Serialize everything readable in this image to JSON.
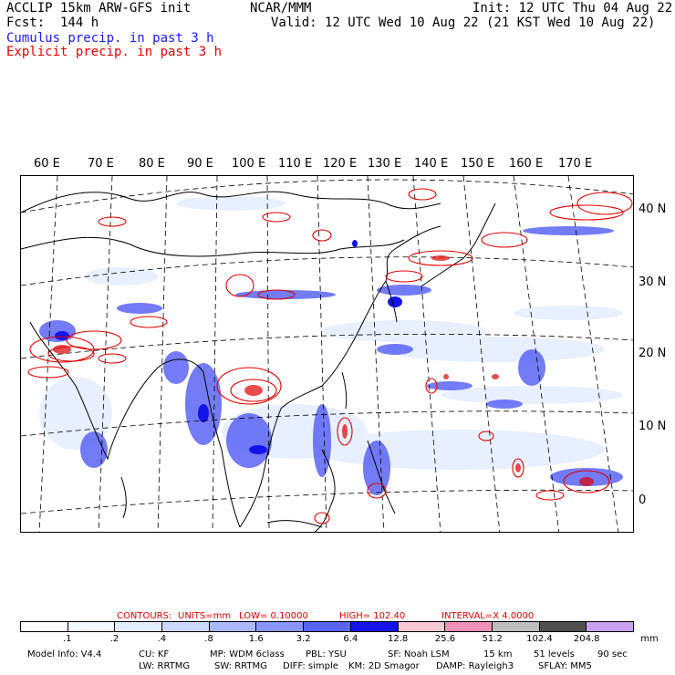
{
  "header": {
    "title_left": "ACCLIP 15km ARW-GFS init",
    "fcst": "Fcst:  144 h",
    "center": "NCAR/MMM",
    "init": "Init: 12 UTC Thu 04 Aug 22",
    "valid": "Valid: 12 UTC Wed 10 Aug 22 (21 KST Wed 10 Aug 22)",
    "legend_cumulus": "Cumulus precip. in past 3 h",
    "legend_explicit": "Explicit precip. in past 3 h"
  },
  "colors": {
    "cumulus": "#1a1aff",
    "explicit": "#e00000",
    "coast": "#000000"
  },
  "map": {
    "lon_labels": [
      "60 E",
      "70 E",
      "80 E",
      "90 E",
      "100 E",
      "110 E",
      "120 E",
      "130 E",
      "140 E",
      "150 E",
      "160 E",
      "170 E"
    ],
    "lat_labels": [
      "40 N",
      "30 N",
      "20 N",
      "10 N",
      "0"
    ]
  },
  "contours": {
    "label": "CONTOURS:",
    "units": "UNITS=mm",
    "low": "LOW=  0.10000",
    "high": "HIGH=   102.40",
    "interval": "INTERVAL=X   4.0000"
  },
  "colorbar": {
    "labels": [
      ".1",
      ".2",
      ".4",
      ".8",
      "1.6",
      "3.2",
      "6.4",
      "12.8",
      "25.6",
      "51.2",
      "102.4",
      "204.8"
    ],
    "unit": "mm",
    "colors": [
      "#ffffff",
      "#f4f8ff",
      "#e4ecff",
      "#ccd8ff",
      "#aab8ff",
      "#8a96ff",
      "#5b64f6",
      "#1414e8",
      "#f8c8d4",
      "#f090b8",
      "#bdbdbd",
      "#505050",
      "#c8a0f0"
    ]
  },
  "model_info": {
    "line1": [
      "Model Info: V4.4",
      "CU: KF",
      "MP: WDM 6class",
      "PBL: YSU",
      "SF: Noah LSM",
      "15 km",
      "51 levels",
      "90 sec"
    ],
    "line2": [
      "LW: RRTMG",
      "SW: RRTMG",
      "DIFF: simple",
      "KM: 2D Smagor",
      "DAMP: Rayleigh3",
      "SFLAY: MM5"
    ]
  }
}
